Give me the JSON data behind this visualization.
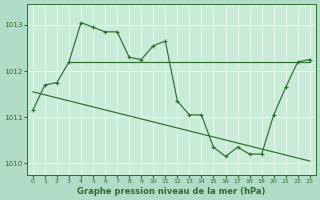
{
  "title": "",
  "xlabel": "Graphe pression niveau de la mer (hPa)",
  "bg_color": "#b0dcc8",
  "grid_color": "#e8f8f0",
  "line_color": "#2d6e2d",
  "plot_bg": "#c8ecd8",
  "ylim": [
    1009.75,
    1013.45
  ],
  "xlim": [
    -0.5,
    23.5
  ],
  "yticks": [
    1010,
    1011,
    1012,
    1013
  ],
  "xticks": [
    0,
    1,
    2,
    3,
    4,
    5,
    6,
    7,
    8,
    9,
    10,
    11,
    12,
    13,
    14,
    15,
    16,
    17,
    18,
    19,
    20,
    21,
    22,
    23
  ],
  "series_main": {
    "x": [
      0,
      1,
      2,
      3,
      4,
      5,
      6,
      7,
      8,
      9,
      10,
      11,
      12,
      13,
      14,
      15,
      16,
      17,
      18,
      19,
      20,
      21,
      22,
      23
    ],
    "y": [
      1011.15,
      1011.7,
      1011.75,
      1012.2,
      1013.05,
      1012.95,
      1012.85,
      1012.85,
      1012.3,
      1012.25,
      1012.55,
      1012.65,
      1011.35,
      1011.05,
      1011.05,
      1010.35,
      1010.15,
      1010.35,
      1010.2,
      1010.2,
      1011.05,
      1011.65,
      1012.2,
      1012.25
    ]
  },
  "series_flat": {
    "x": [
      3,
      23
    ],
    "y": [
      1012.2,
      1012.2
    ]
  },
  "series_diag": {
    "x": [
      0,
      23
    ],
    "y": [
      1011.55,
      1010.05
    ]
  }
}
